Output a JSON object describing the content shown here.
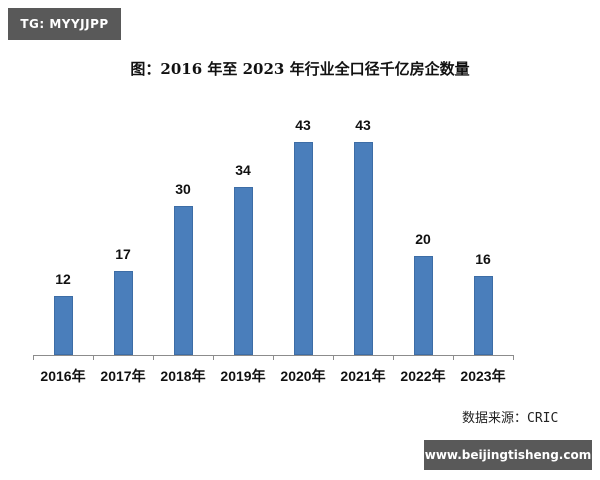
{
  "watermarks": {
    "top_left": "TG: MYYJJPP",
    "bottom_right": "www.beijingtisheng.com"
  },
  "source_note": "数据来源：CRIC",
  "colors": {
    "bar": "#4a7ebb",
    "badge_bg": "#595959"
  },
  "chart_data": {
    "type": "bar",
    "title": "图：2016 年至 2023 年行业全口径千亿房企数量",
    "categories": [
      "2016年",
      "2017年",
      "2018年",
      "2019年",
      "2020年",
      "2021年",
      "2022年",
      "2023年"
    ],
    "values": [
      12,
      17,
      30,
      34,
      43,
      43,
      20,
      16
    ],
    "data_labels": [
      "12",
      "17",
      "30",
      "34",
      "43",
      "43",
      "20",
      "16"
    ],
    "xlabel": "",
    "ylabel": "",
    "ylim": [
      0,
      43
    ],
    "grid": false,
    "legend": null,
    "source": "数据来源：CRIC"
  }
}
